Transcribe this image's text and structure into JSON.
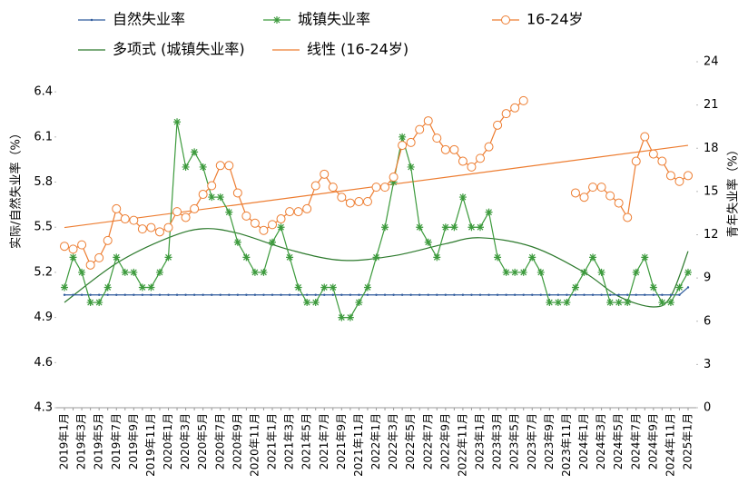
{
  "chart_data": {
    "type": "line",
    "y_label": "实际/自然失业率（%）",
    "y2_label": "青年失业率（%）",
    "categories": [
      "2019年1月",
      null,
      "2019年3月",
      null,
      "2019年5月",
      null,
      "2019年7月",
      null,
      "2019年9月",
      null,
      "2019年11月",
      null,
      "2020年1月",
      null,
      "2020年3月",
      null,
      "2020年5月",
      null,
      "2020年7月",
      null,
      "2020年9月",
      null,
      "2020年11月",
      null,
      "2021年1月",
      null,
      "2021年3月",
      null,
      "2021年5月",
      null,
      "2021年7月",
      null,
      "2021年9月",
      null,
      "2021年11月",
      null,
      "2022年1月",
      null,
      "2022年3月",
      null,
      "2022年5月",
      null,
      "2022年7月",
      null,
      "2022年9月",
      null,
      "2022年11月",
      null,
      "2023年1月",
      null,
      "2023年3月",
      null,
      "2023年5月",
      null,
      "2023年7月",
      null,
      "2023年9月",
      null,
      "2023年11月",
      null,
      "2024年1月",
      null,
      "2024年3月",
      null,
      "2024年5月",
      null,
      "2024年7月",
      null,
      "2024年9月",
      null,
      "2024年11月",
      null,
      "2025年1月"
    ],
    "ylim": [
      4.3,
      6.6
    ],
    "yticks": [
      4.3,
      4.6,
      4.9,
      5.2,
      5.5,
      5.8,
      6.1,
      6.4
    ],
    "y2lim": [
      0,
      24
    ],
    "y2ticks": [
      0,
      3,
      6,
      9,
      12,
      15,
      18,
      21,
      24
    ],
    "series": [
      {
        "name": "自然失业率",
        "color": "#2e5a9c",
        "marker": "dot",
        "values": [
          5.05,
          5.05,
          5.05,
          5.05,
          5.05,
          5.05,
          5.05,
          5.05,
          5.05,
          5.05,
          5.05,
          5.05,
          5.05,
          5.05,
          5.05,
          5.05,
          5.05,
          5.05,
          5.05,
          5.05,
          5.05,
          5.05,
          5.05,
          5.05,
          5.05,
          5.05,
          5.05,
          5.05,
          5.05,
          5.05,
          5.05,
          5.05,
          5.05,
          5.05,
          5.05,
          5.05,
          5.05,
          5.05,
          5.05,
          5.05,
          5.05,
          5.05,
          5.05,
          5.05,
          5.05,
          5.05,
          5.05,
          5.05,
          5.05,
          5.05,
          5.05,
          5.05,
          5.05,
          5.05,
          5.05,
          5.05,
          5.05,
          5.05,
          5.05,
          5.05,
          5.05,
          5.05,
          5.05,
          5.05,
          5.05,
          5.05,
          5.05,
          5.05,
          5.05,
          5.05,
          5.05,
          5.05,
          5.1
        ]
      },
      {
        "name": "城镇失业率",
        "color": "#3c9a3c",
        "marker": "star",
        "values": [
          5.1,
          5.3,
          5.2,
          5.0,
          5.0,
          5.1,
          5.3,
          5.2,
          5.2,
          5.1,
          5.1,
          5.2,
          5.3,
          6.2,
          5.9,
          6.0,
          5.9,
          5.7,
          5.7,
          5.6,
          5.4,
          5.3,
          5.2,
          5.2,
          5.4,
          5.5,
          5.3,
          5.1,
          5.0,
          5.0,
          5.1,
          5.1,
          4.9,
          4.9,
          5.0,
          5.1,
          5.3,
          5.5,
          5.8,
          6.1,
          5.9,
          5.5,
          5.4,
          5.3,
          5.5,
          5.5,
          5.7,
          5.5,
          5.5,
          5.6,
          5.3,
          5.2,
          5.2,
          5.2,
          5.3,
          5.2,
          5.0,
          5.0,
          5.0,
          5.1,
          5.2,
          5.3,
          5.2,
          5.0,
          5.0,
          5.0,
          5.2,
          5.3,
          5.1,
          5.0,
          5.0,
          5.1,
          5.2
        ]
      },
      {
        "name": "16-24岁",
        "color": "#ed7d31",
        "marker": "circle",
        "axis": "y2",
        "values": [
          11.2,
          11.0,
          11.3,
          9.9,
          10.4,
          11.6,
          13.8,
          13.1,
          13.0,
          12.4,
          12.5,
          12.2,
          12.5,
          13.6,
          13.2,
          13.8,
          14.8,
          15.4,
          16.8,
          16.8,
          14.9,
          13.3,
          12.8,
          12.3,
          12.7,
          13.1,
          13.6,
          13.6,
          13.8,
          15.4,
          16.2,
          15.3,
          14.6,
          14.2,
          14.3,
          14.3,
          15.3,
          15.3,
          16.0,
          18.2,
          18.4,
          19.3,
          19.9,
          18.7,
          17.9,
          17.9,
          17.1,
          16.7,
          17.3,
          18.1,
          19.6,
          20.4,
          20.8,
          21.3,
          null,
          null,
          null,
          null,
          null,
          14.9,
          14.6,
          15.3,
          15.3,
          14.7,
          14.2,
          13.2,
          17.1,
          18.8,
          17.6,
          17.1,
          16.1,
          15.7,
          16.1
        ]
      }
    ],
    "trendlines": [
      {
        "name": "多项式 (城镇失业率)",
        "color": "#2d7a2d",
        "categories": [
          "2019年1月",
          "2019年7月",
          "2020年1月",
          "2020年5月",
          "2020年9月",
          "2021年3月",
          "2021年9月",
          "2022年3月",
          "2022年9月",
          "2023年1月",
          "2023年7月",
          "2024年1月",
          "2024年5月",
          "2024年9月",
          "2024年11月",
          "2025年1月"
        ],
        "values": [
          5.0,
          5.26,
          5.43,
          5.49,
          5.46,
          5.35,
          5.28,
          5.31,
          5.39,
          5.43,
          5.37,
          5.2,
          5.04,
          4.97,
          5.04,
          5.34
        ]
      },
      {
        "name": "线性 (16-24岁)",
        "color": "#ed7d31",
        "axis": "y2",
        "categories": [
          "2019年1月",
          "2025年1月"
        ],
        "values": [
          12.5,
          18.2
        ]
      }
    ]
  }
}
